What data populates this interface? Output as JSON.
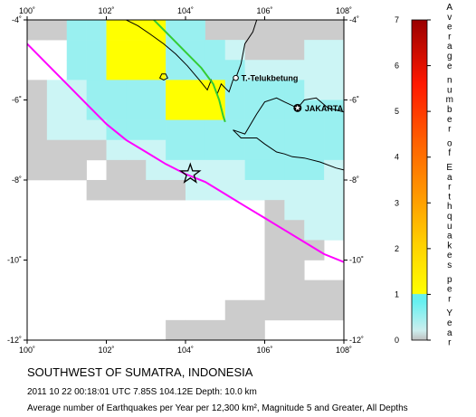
{
  "map": {
    "x_ticks": [
      "100˚",
      "102˚",
      "104˚",
      "106˚",
      "108˚"
    ],
    "y_ticks_left": [
      "-4˚",
      "-6˚",
      "-8˚",
      "-10˚",
      "-12˚"
    ],
    "y_ticks_right": [
      "-4˚",
      "-6˚",
      "-8˚",
      "-10˚",
      "-12˚"
    ],
    "cities": [
      {
        "name": "T.-Telukbetung",
        "lon": 105.27,
        "lat": -5.45
      },
      {
        "name": "JAKARTA",
        "lon": 106.83,
        "lat": -6.2
      }
    ],
    "epicenter": {
      "lon": 104.12,
      "lat": -7.85
    },
    "colors": {
      "gray": "#cccccc",
      "light_cyan": "#ccf5f5",
      "cyan": "#99f0f0",
      "yellow": "#ffff00",
      "yellow_orange": "#ffd700",
      "trench": "#ff00ff",
      "fault": "#33cc33",
      "coast": "#000000"
    },
    "cells": [
      {
        "lon": 100.0,
        "lat": -4.0,
        "level": 0.3
      },
      {
        "lon": 100.5,
        "lat": -4.0,
        "level": 0.1
      },
      {
        "lon": 101.0,
        "lat": -4.0,
        "level": 1.0
      },
      {
        "lon": 101.5,
        "lat": -4.0,
        "level": 1.0
      },
      {
        "lon": 102.0,
        "lat": -4.0,
        "level": 1.8
      },
      {
        "lon": 102.5,
        "lat": -4.0,
        "level": 1.8
      },
      {
        "lon": 103.0,
        "lat": -4.0,
        "level": 1.8
      },
      {
        "lon": 103.5,
        "lat": -4.0,
        "level": 1.0
      },
      {
        "lon": 104.0,
        "lat": -4.0,
        "level": 1.0
      },
      {
        "lon": 104.5,
        "lat": -4.0,
        "level": 0.3
      },
      {
        "lon": 105.0,
        "lat": -4.0,
        "level": 0.3
      },
      {
        "lon": 105.5,
        "lat": -4.0,
        "level": 0.3
      },
      {
        "lon": 106.0,
        "lat": -4.0,
        "level": 0.3
      },
      {
        "lon": 106.5,
        "lat": -4.0,
        "level": 0.3
      },
      {
        "lon": 107.0,
        "lat": -4.0,
        "level": 0.3
      },
      {
        "lon": 107.5,
        "lat": -4.0,
        "level": 0.3
      },
      {
        "lon": 101.0,
        "lat": -4.5,
        "level": 1.0
      },
      {
        "lon": 101.5,
        "lat": -4.5,
        "level": 1.0
      },
      {
        "lon": 102.0,
        "lat": -4.5,
        "level": 1.8
      },
      {
        "lon": 102.5,
        "lat": -4.5,
        "level": 1.8
      },
      {
        "lon": 103.0,
        "lat": -4.5,
        "level": 1.8
      },
      {
        "lon": 103.5,
        "lat": -4.5,
        "level": 1.0
      },
      {
        "lon": 104.0,
        "lat": -4.5,
        "level": 1.0
      },
      {
        "lon": 104.5,
        "lat": -4.5,
        "level": 1.0
      },
      {
        "lon": 105.0,
        "lat": -4.5,
        "level": 0.6
      },
      {
        "lon": 105.5,
        "lat": -4.5,
        "level": 0.3
      },
      {
        "lon": 106.0,
        "lat": -4.5,
        "level": 0.3
      },
      {
        "lon": 106.5,
        "lat": -4.5,
        "level": 0.3
      },
      {
        "lon": 107.0,
        "lat": -4.5,
        "level": 0.6
      },
      {
        "lon": 107.5,
        "lat": -4.5,
        "level": 0.6
      },
      {
        "lon": 101.0,
        "lat": -5.0,
        "level": 1.0
      },
      {
        "lon": 101.5,
        "lat": -5.0,
        "level": 1.0
      },
      {
        "lon": 102.0,
        "lat": -5.0,
        "level": 1.8
      },
      {
        "lon": 102.5,
        "lat": -5.0,
        "level": 1.8
      },
      {
        "lon": 103.0,
        "lat": -5.0,
        "level": 1.8
      },
      {
        "lon": 103.5,
        "lat": -5.0,
        "level": 1.0
      },
      {
        "lon": 104.0,
        "lat": -5.0,
        "level": 1.0
      },
      {
        "lon": 104.5,
        "lat": -5.0,
        "level": 1.0
      },
      {
        "lon": 105.0,
        "lat": -5.0,
        "level": 1.0
      },
      {
        "lon": 105.5,
        "lat": -5.0,
        "level": 0.6
      },
      {
        "lon": 106.0,
        "lat": -5.0,
        "level": 0.6
      },
      {
        "lon": 106.5,
        "lat": -5.0,
        "level": 0.6
      },
      {
        "lon": 107.0,
        "lat": -5.0,
        "level": 0.6
      },
      {
        "lon": 107.5,
        "lat": -5.0,
        "level": 0.6
      },
      {
        "lon": 100.0,
        "lat": -5.5,
        "level": 0.3
      },
      {
        "lon": 100.5,
        "lat": -5.5,
        "level": 0.6
      },
      {
        "lon": 101.0,
        "lat": -5.5,
        "level": 0.6
      },
      {
        "lon": 101.5,
        "lat": -5.5,
        "level": 1.0
      },
      {
        "lon": 102.0,
        "lat": -5.5,
        "level": 1.0
      },
      {
        "lon": 102.5,
        "lat": -5.5,
        "level": 1.0
      },
      {
        "lon": 103.0,
        "lat": -5.5,
        "level": 1.0
      },
      {
        "lon": 103.5,
        "lat": -5.5,
        "level": 1.8
      },
      {
        "lon": 104.0,
        "lat": -5.5,
        "level": 1.8
      },
      {
        "lon": 104.5,
        "lat": -5.5,
        "level": 1.8
      },
      {
        "lon": 105.0,
        "lat": -5.5,
        "level": 1.0
      },
      {
        "lon": 105.5,
        "lat": -5.5,
        "level": 1.0
      },
      {
        "lon": 106.0,
        "lat": -5.5,
        "level": 1.0
      },
      {
        "lon": 106.5,
        "lat": -5.5,
        "level": 1.0
      },
      {
        "lon": 107.0,
        "lat": -5.5,
        "level": 0.6
      },
      {
        "lon": 107.5,
        "lat": -5.5,
        "level": 0.6
      },
      {
        "lon": 100.0,
        "lat": -6.0,
        "level": 0.3
      },
      {
        "lon": 100.5,
        "lat": -6.0,
        "level": 0.6
      },
      {
        "lon": 101.0,
        "lat": -6.0,
        "level": 0.6
      },
      {
        "lon": 101.5,
        "lat": -6.0,
        "level": 1.0
      },
      {
        "lon": 102.0,
        "lat": -6.0,
        "level": 1.0
      },
      {
        "lon": 102.5,
        "lat": -6.0,
        "level": 1.0
      },
      {
        "lon": 103.0,
        "lat": -6.0,
        "level": 1.0
      },
      {
        "lon": 103.5,
        "lat": -6.0,
        "level": 1.8
      },
      {
        "lon": 104.0,
        "lat": -6.0,
        "level": 1.8
      },
      {
        "lon": 104.5,
        "lat": -6.0,
        "level": 1.8
      },
      {
        "lon": 105.0,
        "lat": -6.0,
        "level": 1.0
      },
      {
        "lon": 105.5,
        "lat": -6.0,
        "level": 1.0
      },
      {
        "lon": 106.0,
        "lat": -6.0,
        "level": 1.0
      },
      {
        "lon": 106.5,
        "lat": -6.0,
        "level": 1.0
      },
      {
        "lon": 107.0,
        "lat": -6.0,
        "level": 1.0
      },
      {
        "lon": 107.5,
        "lat": -6.0,
        "level": 1.0
      },
      {
        "lon": 100.0,
        "lat": -6.5,
        "level": 0.3
      },
      {
        "lon": 100.5,
        "lat": -6.5,
        "level": 0.6
      },
      {
        "lon": 101.0,
        "lat": -6.5,
        "level": 0.6
      },
      {
        "lon": 101.5,
        "lat": -6.5,
        "level": 0.6
      },
      {
        "lon": 102.0,
        "lat": -6.5,
        "level": 1.0
      },
      {
        "lon": 102.5,
        "lat": -6.5,
        "level": 1.0
      },
      {
        "lon": 103.0,
        "lat": -6.5,
        "level": 1.0
      },
      {
        "lon": 103.5,
        "lat": -6.5,
        "level": 1.0
      },
      {
        "lon": 104.0,
        "lat": -6.5,
        "level": 1.0
      },
      {
        "lon": 104.5,
        "lat": -6.5,
        "level": 1.0
      },
      {
        "lon": 105.0,
        "lat": -6.5,
        "level": 1.0
      },
      {
        "lon": 105.5,
        "lat": -6.5,
        "level": 1.0
      },
      {
        "lon": 106.0,
        "lat": -6.5,
        "level": 1.0
      },
      {
        "lon": 106.5,
        "lat": -6.5,
        "level": 1.0
      },
      {
        "lon": 107.0,
        "lat": -6.5,
        "level": 1.0
      },
      {
        "lon": 107.5,
        "lat": -6.5,
        "level": 1.0
      },
      {
        "lon": 100.0,
        "lat": -7.0,
        "level": 0.3
      },
      {
        "lon": 100.5,
        "lat": -7.0,
        "level": 0.3
      },
      {
        "lon": 101.0,
        "lat": -7.0,
        "level": 0.3
      },
      {
        "lon": 101.5,
        "lat": -7.0,
        "level": 0.3
      },
      {
        "lon": 102.0,
        "lat": -7.0,
        "level": 0.6
      },
      {
        "lon": 102.5,
        "lat": -7.0,
        "level": 0.6
      },
      {
        "lon": 103.0,
        "lat": -7.0,
        "level": 0.6
      },
      {
        "lon": 103.5,
        "lat": -7.0,
        "level": 1.0
      },
      {
        "lon": 104.0,
        "lat": -7.0,
        "level": 1.0
      },
      {
        "lon": 104.5,
        "lat": -7.0,
        "level": 1.0
      },
      {
        "lon": 105.0,
        "lat": -7.0,
        "level": 1.0
      },
      {
        "lon": 105.5,
        "lat": -7.0,
        "level": 1.0
      },
      {
        "lon": 106.0,
        "lat": -7.0,
        "level": 1.0
      },
      {
        "lon": 106.5,
        "lat": -7.0,
        "level": 1.0
      },
      {
        "lon": 107.0,
        "lat": -7.0,
        "level": 1.0
      },
      {
        "lon": 107.5,
        "lat": -7.0,
        "level": 1.0
      },
      {
        "lon": 100.0,
        "lat": -7.5,
        "level": 0.3
      },
      {
        "lon": 100.5,
        "lat": -7.5,
        "level": 0.3
      },
      {
        "lon": 101.0,
        "lat": -7.5,
        "level": 0.3
      },
      {
        "lon": 102.0,
        "lat": -7.5,
        "level": 0.3
      },
      {
        "lon": 102.5,
        "lat": -7.5,
        "level": 0.3
      },
      {
        "lon": 103.0,
        "lat": -7.5,
        "level": 0.6
      },
      {
        "lon": 103.5,
        "lat": -7.5,
        "level": 0.6
      },
      {
        "lon": 104.0,
        "lat": -7.5,
        "level": 0.6
      },
      {
        "lon": 104.5,
        "lat": -7.5,
        "level": 0.6
      },
      {
        "lon": 105.0,
        "lat": -7.5,
        "level": 0.6
      },
      {
        "lon": 105.5,
        "lat": -7.5,
        "level": 1.0
      },
      {
        "lon": 106.0,
        "lat": -7.5,
        "level": 1.0
      },
      {
        "lon": 106.5,
        "lat": -7.5,
        "level": 1.0
      },
      {
        "lon": 107.0,
        "lat": -7.5,
        "level": 1.0
      },
      {
        "lon": 107.5,
        "lat": -7.5,
        "level": 0.6
      },
      {
        "lon": 101.5,
        "lat": -8.0,
        "level": 0.3
      },
      {
        "lon": 102.0,
        "lat": -8.0,
        "level": 0.3
      },
      {
        "lon": 102.5,
        "lat": -8.0,
        "level": 0.3
      },
      {
        "lon": 103.0,
        "lat": -8.0,
        "level": 0.3
      },
      {
        "lon": 103.5,
        "lat": -8.0,
        "level": 0.3
      },
      {
        "lon": 104.0,
        "lat": -8.0,
        "level": 0.6
      },
      {
        "lon": 104.5,
        "lat": -8.0,
        "level": 0.6
      },
      {
        "lon": 105.0,
        "lat": -8.0,
        "level": 0.6
      },
      {
        "lon": 105.5,
        "lat": -8.0,
        "level": 0.6
      },
      {
        "lon": 106.0,
        "lat": -8.0,
        "level": 0.6
      },
      {
        "lon": 106.5,
        "lat": -8.0,
        "level": 0.6
      },
      {
        "lon": 107.0,
        "lat": -8.0,
        "level": 0.6
      },
      {
        "lon": 107.5,
        "lat": -8.0,
        "level": 0.6
      },
      {
        "lon": 106.0,
        "lat": -8.5,
        "level": 0.3
      },
      {
        "lon": 106.5,
        "lat": -8.5,
        "level": 0.6
      },
      {
        "lon": 107.0,
        "lat": -8.5,
        "level": 0.6
      },
      {
        "lon": 107.5,
        "lat": -8.5,
        "level": 0.6
      },
      {
        "lon": 106.0,
        "lat": -9.0,
        "level": 0.3
      },
      {
        "lon": 106.5,
        "lat": -9.0,
        "level": 0.3
      },
      {
        "lon": 107.0,
        "lat": -9.0,
        "level": 0.6
      },
      {
        "lon": 107.5,
        "lat": -9.0,
        "level": 0.6
      },
      {
        "lon": 106.0,
        "lat": -9.5,
        "level": 0.3
      },
      {
        "lon": 106.5,
        "lat": -9.5,
        "level": 0.3
      },
      {
        "lon": 107.0,
        "lat": -9.5,
        "level": 0.3
      },
      {
        "lon": 106.0,
        "lat": -10.0,
        "level": 0.3
      },
      {
        "lon": 106.5,
        "lat": -10.0,
        "level": 0.3
      },
      {
        "lon": 106.0,
        "lat": -10.5,
        "level": 0.3
      },
      {
        "lon": 106.5,
        "lat": -10.5,
        "level": 0.3
      },
      {
        "lon": 107.0,
        "lat": -10.5,
        "level": 0.3
      },
      {
        "lon": 107.5,
        "lat": -10.5,
        "level": 0.3
      },
      {
        "lon": 105.0,
        "lat": -11.0,
        "level": 0.3
      },
      {
        "lon": 105.5,
        "lat": -11.0,
        "level": 0.3
      },
      {
        "lon": 106.0,
        "lat": -11.0,
        "level": 0.3
      },
      {
        "lon": 106.5,
        "lat": -11.0,
        "level": 0.3
      },
      {
        "lon": 107.0,
        "lat": -11.0,
        "level": 0.3
      },
      {
        "lon": 107.5,
        "lat": -11.0,
        "level": 0.3
      },
      {
        "lon": 103.5,
        "lat": -11.5,
        "level": 0.3
      },
      {
        "lon": 104.0,
        "lat": -11.5,
        "level": 0.3
      },
      {
        "lon": 104.5,
        "lat": -11.5,
        "level": 0.3
      },
      {
        "lon": 105.0,
        "lat": -11.5,
        "level": 0.3
      },
      {
        "lon": 105.5,
        "lat": -11.5,
        "level": 0.3
      }
    ],
    "trench": [
      [
        100.0,
        -4.6
      ],
      [
        100.5,
        -5.1
      ],
      [
        101.0,
        -5.6
      ],
      [
        101.5,
        -6.1
      ],
      [
        102.0,
        -6.6
      ],
      [
        102.5,
        -7.0
      ],
      [
        103.0,
        -7.3
      ],
      [
        103.5,
        -7.6
      ],
      [
        104.0,
        -7.85
      ],
      [
        104.5,
        -8.05
      ],
      [
        105.0,
        -8.35
      ],
      [
        105.5,
        -8.65
      ],
      [
        106.0,
        -8.95
      ],
      [
        106.5,
        -9.25
      ],
      [
        107.0,
        -9.55
      ],
      [
        107.5,
        -9.85
      ],
      [
        108.0,
        -10.05
      ]
    ],
    "fault": [
      [
        103.2,
        -4.0
      ],
      [
        103.6,
        -4.4
      ],
      [
        104.0,
        -4.8
      ],
      [
        104.4,
        -5.2
      ],
      [
        104.7,
        -5.6
      ],
      [
        104.85,
        -6.0
      ],
      [
        104.95,
        -6.4
      ],
      [
        105.0,
        -6.55
      ]
    ],
    "coast_sumatra": [
      [
        102.5,
        -4.0
      ],
      [
        102.8,
        -4.15
      ],
      [
        103.1,
        -4.35
      ],
      [
        103.45,
        -4.6
      ],
      [
        103.75,
        -4.85
      ],
      [
        104.05,
        -5.15
      ],
      [
        104.35,
        -5.5
      ],
      [
        104.55,
        -5.75
      ],
      [
        104.65,
        -5.5
      ],
      [
        104.8,
        -5.85
      ],
      [
        104.9,
        -5.6
      ],
      [
        105.1,
        -5.8
      ],
      [
        105.2,
        -5.5
      ],
      [
        105.27,
        -5.45
      ]
    ],
    "coast_sumatra_east": [
      [
        105.27,
        -5.45
      ],
      [
        105.4,
        -5.1
      ],
      [
        105.5,
        -4.6
      ],
      [
        105.7,
        -4.3
      ],
      [
        105.8,
        -4.0
      ]
    ],
    "coast_java_north": [
      [
        105.2,
        -6.75
      ],
      [
        105.5,
        -6.85
      ],
      [
        105.8,
        -6.35
      ],
      [
        106.0,
        -6.05
      ],
      [
        106.3,
        -5.95
      ],
      [
        106.5,
        -6.05
      ],
      [
        106.83,
        -6.2
      ],
      [
        107.0,
        -6.0
      ],
      [
        107.3,
        -5.95
      ],
      [
        107.6,
        -6.2
      ],
      [
        108.0,
        -6.3
      ]
    ],
    "coast_java_south": [
      [
        105.2,
        -6.75
      ],
      [
        105.4,
        -6.95
      ],
      [
        105.8,
        -6.95
      ],
      [
        106.0,
        -7.1
      ],
      [
        106.3,
        -7.3
      ],
      [
        106.5,
        -7.35
      ],
      [
        106.7,
        -7.42
      ],
      [
        107.0,
        -7.45
      ],
      [
        107.4,
        -7.55
      ],
      [
        107.8,
        -7.7
      ],
      [
        108.0,
        -7.75
      ]
    ],
    "coast_island": [
      [
        103.35,
        -5.45
      ],
      [
        103.45,
        -5.5
      ],
      [
        103.55,
        -5.45
      ],
      [
        103.5,
        -5.35
      ],
      [
        103.4,
        -5.35
      ]
    ]
  },
  "colorbar": {
    "ticks": [
      "0",
      "1",
      "2",
      "3",
      "4",
      "5",
      "6",
      "7"
    ],
    "title_chars": [
      "A",
      "v",
      "e",
      "r",
      "a",
      "g",
      "e",
      "",
      "n",
      "u",
      "m",
      "b",
      "e",
      "r",
      "",
      "o",
      "f",
      "",
      "E",
      "a",
      "r",
      "t",
      "h",
      "q",
      "u",
      "a",
      "k",
      "e",
      "s",
      "",
      "p",
      "e",
      "r",
      "",
      "Y",
      "e",
      "a",
      "r"
    ]
  },
  "caption": {
    "title": "SOUTHWEST OF SUMATRA, INDONESIA",
    "event": "2011 10 22 00:18:01 UTC 7.85S 104.12E Depth: 10.0 km",
    "desc": "Average number of Earthquakes per Year per 12,300 km², Magnitude 5 and Greater, All Depths"
  }
}
